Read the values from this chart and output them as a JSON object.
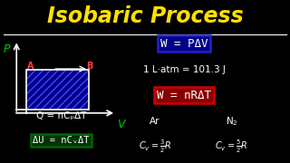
{
  "title": "Isobaric Process",
  "title_color": "#FFE000",
  "bg_color": "#000000",
  "title_fontsize": 17,
  "divider_color": "#FFFFFF",
  "graph": {
    "p_label_color": "#00CC00",
    "v_label_color": "#00CC00",
    "fill_color": "#000088",
    "hatch_color": "#4444FF",
    "axis_color": "#FFFFFF",
    "point_a_color": "#FF4444",
    "point_b_color": "#FF4444"
  },
  "eq1_text": "W = PΔV",
  "eq1_box_face": "#000088",
  "eq1_box_edge": "#2222CC",
  "eq2_text": "1 L·atm = 101.3 J",
  "eq3_text": "W = nRΔT",
  "eq3_box_face": "#880000",
  "eq3_box_edge": "#CC0000",
  "eq4_text": "Q = nCₚΔT",
  "eq5_text": "ΔU = nCᵥΔT",
  "eq5_box_face": "#003300",
  "eq5_box_edge": "#006600",
  "white": "#FFFFFF"
}
